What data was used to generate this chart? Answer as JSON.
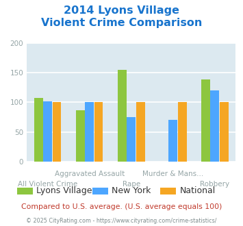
{
  "title_line1": "2014 Lyons Village",
  "title_line2": "Violent Crime Comparison",
  "title_color": "#1874cd",
  "categories": [
    "All Violent Crime",
    "Aggravated Assault",
    "Rape",
    "Murder & Mans...",
    "Robbery"
  ],
  "series": {
    "Lyons Village": [
      107,
      87,
      155,
      0,
      139
    ],
    "New York": [
      102,
      100,
      75,
      70,
      120
    ],
    "National": [
      100,
      100,
      100,
      100,
      100
    ]
  },
  "colors": {
    "Lyons Village": "#8dc63f",
    "New York": "#4da6ff",
    "National": "#f5a623"
  },
  "ylim": [
    0,
    200
  ],
  "yticks": [
    0,
    50,
    100,
    150,
    200
  ],
  "bar_width": 0.22,
  "plot_bg": "#dce9f0",
  "grid_color": "#ffffff",
  "top_labels": {
    "1": "Aggravated Assault",
    "3": "Murder & Mans..."
  },
  "bottom_labels": {
    "0": "All Violent Crime",
    "2": "Rape",
    "4": "Robbery"
  },
  "footer_text1": "Compared to U.S. average. (U.S. average equals 100)",
  "footer_text2": "© 2025 CityRating.com - https://www.cityrating.com/crime-statistics/",
  "footer_color1": "#c0392b",
  "footer_color2": "#7f8c8d",
  "tick_label_color": "#95a5a6",
  "axis_label_fontsize": 7.5,
  "legend_fontsize": 9.0,
  "title_fontsize": 11.5
}
